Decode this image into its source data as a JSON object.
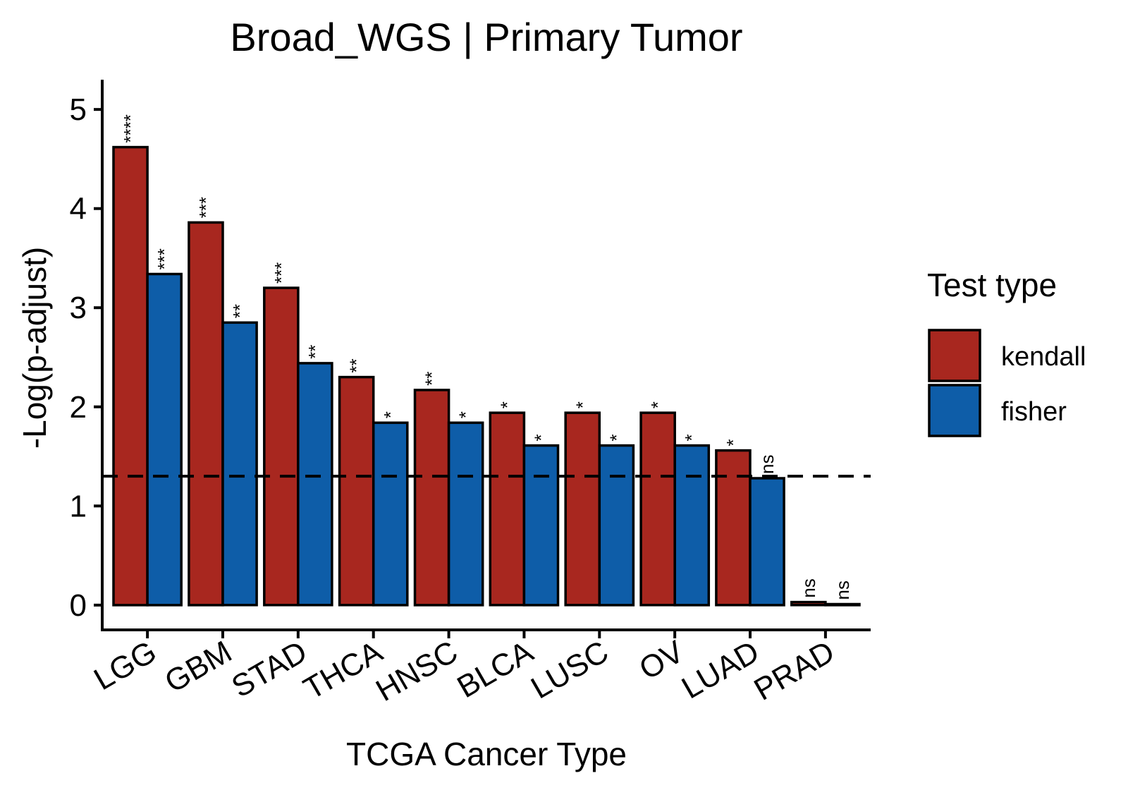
{
  "chart_data": {
    "type": "bar",
    "title": "Broad_WGS | Primary Tumor",
    "xlabel": "TCGA Cancer Type",
    "ylabel": "-Log(p-adjust)",
    "ylim": [
      -0.25,
      5.3
    ],
    "yticks": [
      0,
      1,
      2,
      3,
      4,
      5
    ],
    "threshold": 1.3,
    "categories": [
      "LGG",
      "GBM",
      "STAD",
      "THCA",
      "HNSC",
      "BLCA",
      "LUSC",
      "OV",
      "LUAD",
      "PRAD"
    ],
    "series": [
      {
        "name": "kendall",
        "color": "#A8271F",
        "values": [
          4.62,
          3.86,
          3.2,
          2.3,
          2.17,
          1.94,
          1.94,
          1.94,
          1.56,
          0.03
        ],
        "labels": [
          "****",
          "***",
          "***",
          "**",
          "**",
          "*",
          "*",
          "*",
          "*",
          "ns"
        ]
      },
      {
        "name": "fisher",
        "color": "#0E5DA8",
        "values": [
          3.34,
          2.85,
          2.44,
          1.84,
          1.84,
          1.61,
          1.61,
          1.61,
          1.28,
          0.01
        ],
        "labels": [
          "***",
          "**",
          "**",
          "*",
          "*",
          "*",
          "*",
          "*",
          "ns",
          "ns"
        ]
      }
    ],
    "legend": {
      "title": "Test type",
      "position": "right"
    },
    "grid": false
  }
}
